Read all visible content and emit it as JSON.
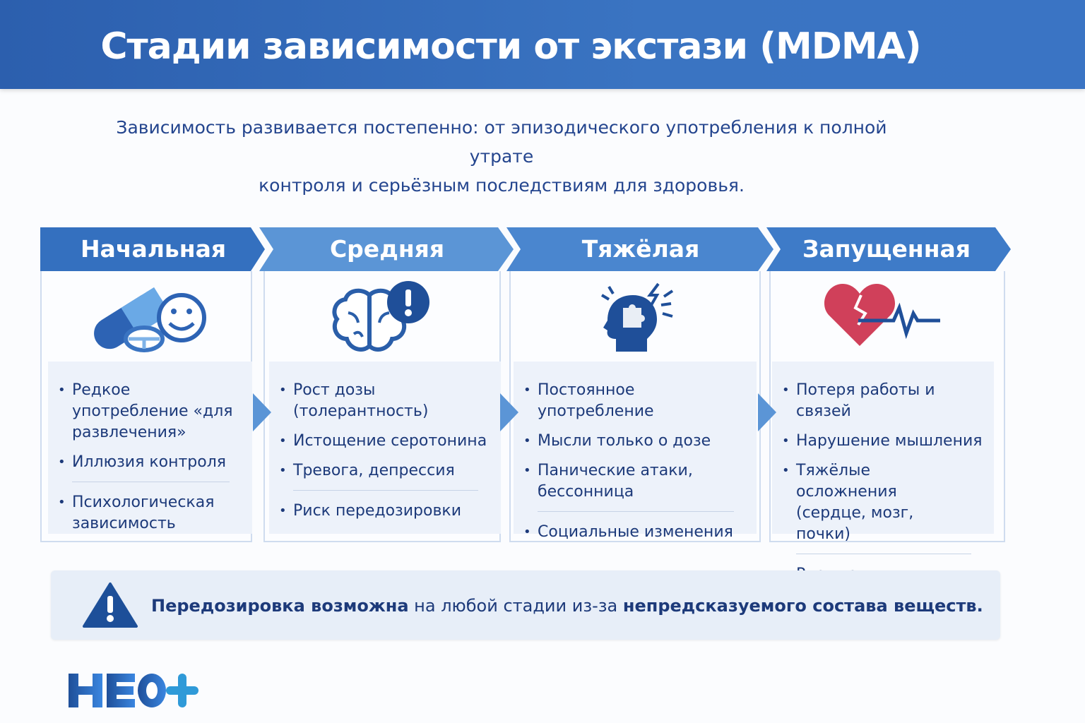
{
  "title": "Стадии зависимости от экстази (MDMA)",
  "subtitle": {
    "line1": "Зависимость развивается постепенно: от эпизодического употребления к полной утрате",
    "line2": "контроля и серьёзным последствиям для здоровья."
  },
  "colors": {
    "header": "#2f65b2",
    "accent": "#3a78c6",
    "text": "#1d3a7a",
    "warning": "#1d4f99",
    "heart": "#d0405a"
  },
  "stages": [
    {
      "label": "Начальная",
      "icon": "pills-smiley-icon",
      "items": [
        "Редкое употребление «для развлечения»",
        "Иллюзия контроля",
        "Психологическая зависимость"
      ]
    },
    {
      "label": "Средняя",
      "icon": "brain-alert-icon",
      "items": [
        "Рост дозы (толерантность)",
        "Истощение серотонина",
        "Тревога, депрессия",
        "Риск передозировки"
      ]
    },
    {
      "label": "Тяжёлая",
      "icon": "head-puzzle-icon",
      "items": [
        "Постоянное употребление",
        "Мысли только о дозе",
        "Панические атаки, бессонница",
        "Социальные изменения"
      ]
    },
    {
      "label": "Запущенная",
      "icon": "broken-heart-pulse-icon",
      "items": [
        "Потеря работы и связей",
        "Нарушение мышления",
        "Тяжёлые осложнения (сердце, мозг, почки)",
        "Риск комы"
      ]
    }
  ],
  "warning": {
    "icon": "warning-triangle-icon",
    "bold1": "Передозировка возможна",
    "mid": " на любой стадии из-за ",
    "bold2": "непредсказуемого состава веществ."
  },
  "logo": "НЕО+"
}
